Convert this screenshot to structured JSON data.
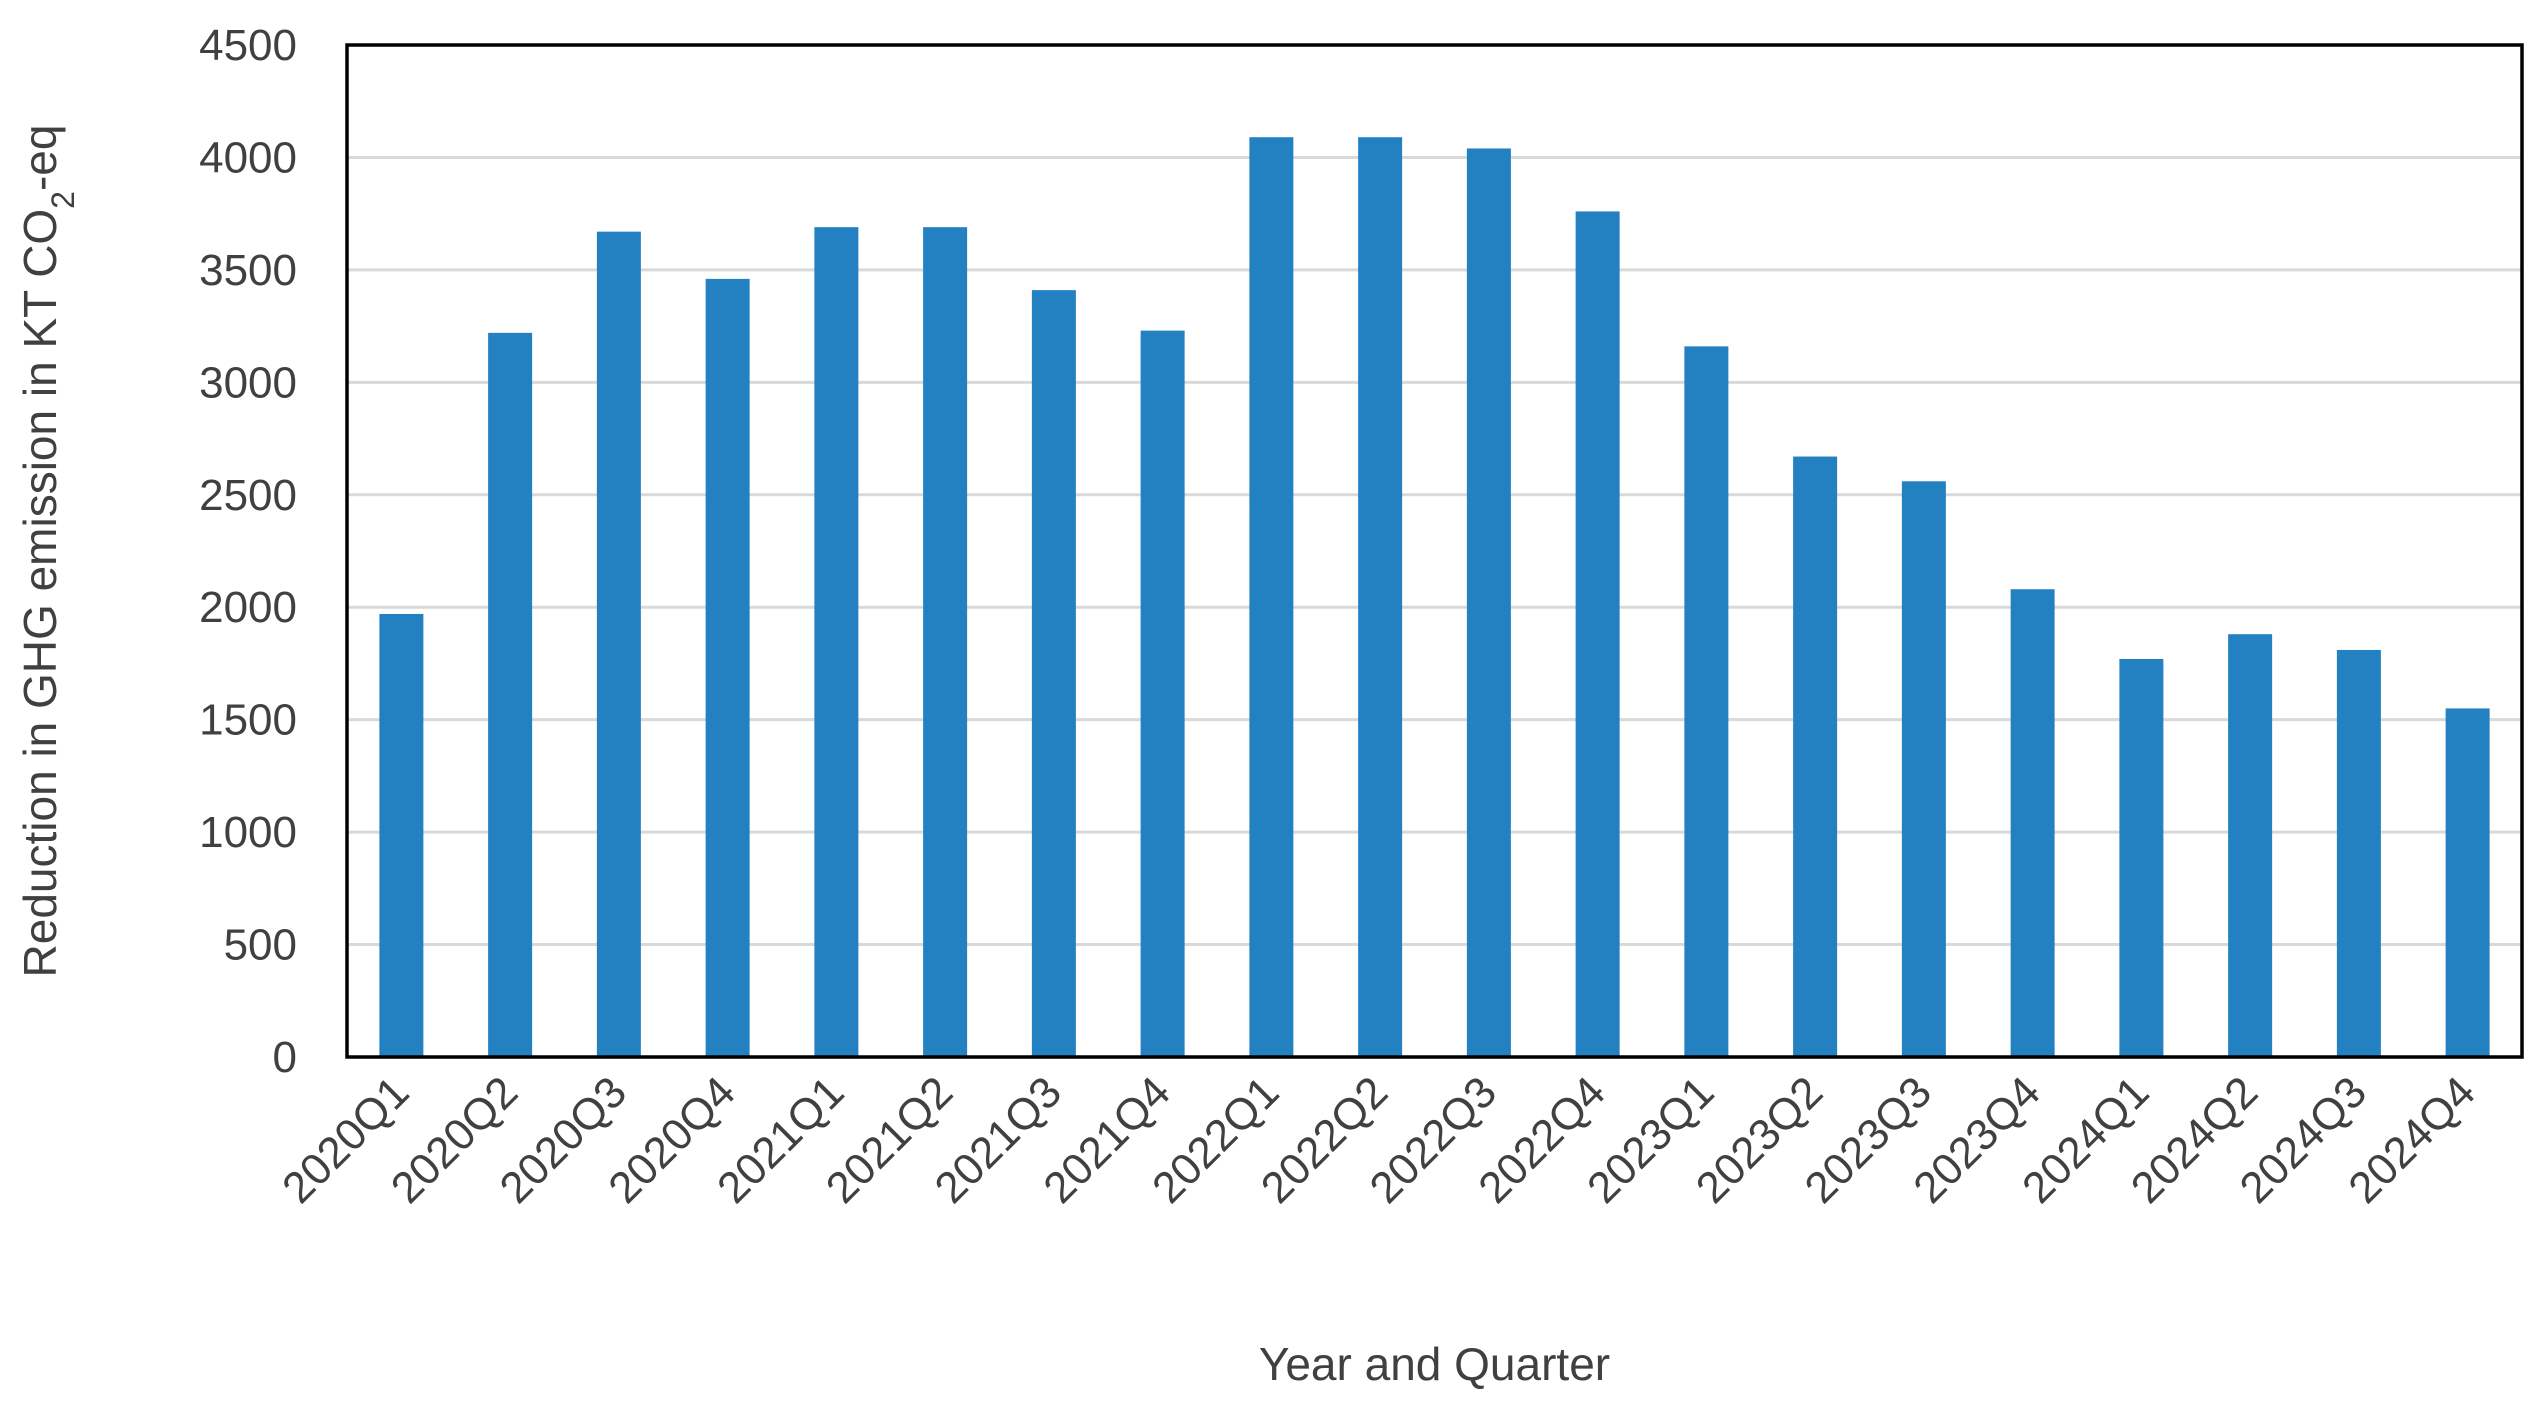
{
  "chart_data": {
    "type": "bar",
    "title": "",
    "xlabel": "Year and Quarter",
    "ylabel": {
      "prefix": "Reduction in GHG emission in KT CO",
      "subscript": "2",
      "suffix": "-eq"
    },
    "ylim": [
      0,
      4500
    ],
    "yticks": [
      0,
      500,
      1000,
      1500,
      2000,
      2500,
      3000,
      3500,
      4000,
      4500
    ],
    "grid": true,
    "legend": "none",
    "colors": {
      "bar": "#2381c2",
      "grid": "#d9d9d9",
      "frame": "#000000",
      "text": "#404040"
    },
    "categories": [
      "2020Q1",
      "2020Q2",
      "2020Q3",
      "2020Q4",
      "2021Q1",
      "2021Q2",
      "2021Q3",
      "2021Q4",
      "2022Q1",
      "2022Q2",
      "2022Q3",
      "2022Q4",
      "2023Q1",
      "2023Q2",
      "2023Q3",
      "2023Q4",
      "2024Q1",
      "2024Q2",
      "2024Q3",
      "2024Q4"
    ],
    "values": [
      1970,
      3220,
      3670,
      3460,
      3690,
      3690,
      3410,
      3230,
      4090,
      4090,
      4040,
      3760,
      3160,
      2670,
      2560,
      2080,
      1770,
      1880,
      1810,
      1550
    ]
  }
}
